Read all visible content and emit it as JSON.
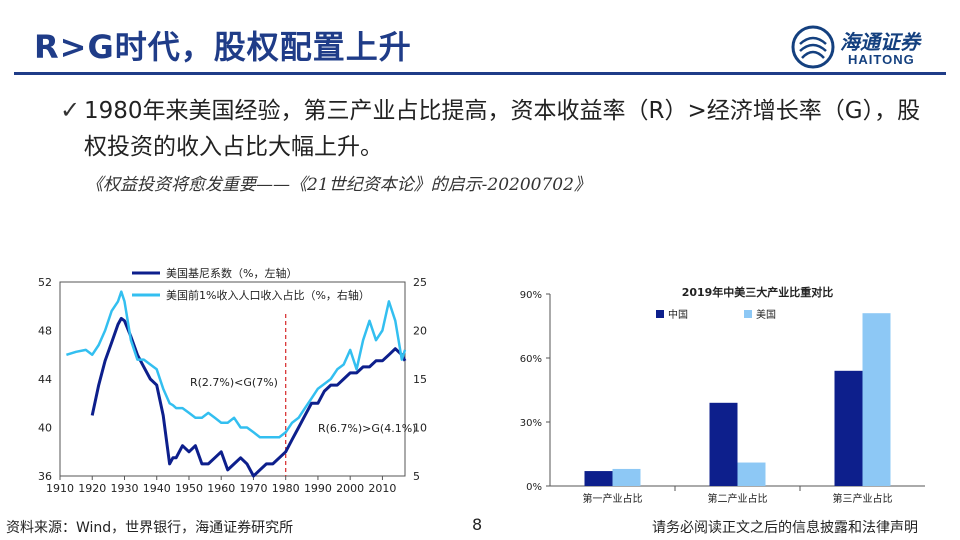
{
  "header": {
    "title": "R>G时代，股权配置上升",
    "logo_cn": "海通证券",
    "logo_en": "HAITONG"
  },
  "body": {
    "bullet": "1980年来美国经验，第三产业占比提高，资本收益率（R）>经济增长率（G），股权投资的收入占比大幅上升。",
    "source_link": "《权益投资将愈发重要——《21世纪资本论》的启示-20200702》"
  },
  "footer": {
    "source": "资料来源：Wind，世界银行，海通证券研究所",
    "page": "8",
    "disclaimer": "请务必阅读正文之后的信息披露和法律声明"
  },
  "colors": {
    "brand": "#1f3c88",
    "navy": "#0d1f8c",
    "cyan": "#33bff0",
    "light_blue": "#8dc8f5",
    "red_line": "#d62728"
  },
  "chart_data": [
    {
      "type": "line",
      "title": "",
      "x": [
        1912,
        1915,
        1918,
        1920,
        1922,
        1924,
        1926,
        1928,
        1929,
        1930,
        1932,
        1934,
        1936,
        1938,
        1940,
        1942,
        1944,
        1945,
        1946,
        1948,
        1950,
        1952,
        1954,
        1956,
        1958,
        1960,
        1962,
        1964,
        1966,
        1968,
        1970,
        1972,
        1974,
        1976,
        1978,
        1980,
        1982,
        1984,
        1986,
        1988,
        1990,
        1992,
        1994,
        1996,
        1998,
        2000,
        2002,
        2004,
        2006,
        2008,
        2010,
        2012,
        2014,
        2016,
        2017
      ],
      "series": [
        {
          "name": "美国基尼系数（%，左轴）",
          "axis": "left",
          "values": [
            null,
            null,
            null,
            41,
            43.5,
            45.5,
            47,
            48.5,
            49,
            48.8,
            47.5,
            46,
            45,
            44,
            43.5,
            41,
            37,
            37.5,
            37.5,
            38.5,
            38,
            38.5,
            37,
            37,
            37.5,
            38,
            36.5,
            37,
            37.5,
            37,
            36,
            36.5,
            37,
            37,
            37.5,
            38,
            39,
            40,
            41,
            42,
            42,
            43,
            43.5,
            43.5,
            44,
            44.5,
            44.5,
            45,
            45,
            45.5,
            45.5,
            46,
            46.5,
            46,
            45.5
          ]
        },
        {
          "name": "美国前1%收入人口收入占比（%，右轴）",
          "axis": "right",
          "values": [
            17.5,
            17.8,
            18,
            17.5,
            18.5,
            20,
            22,
            23,
            24,
            23,
            19,
            17,
            17,
            16.5,
            16,
            14,
            12.5,
            12.3,
            12,
            12,
            11.5,
            11,
            11,
            11.5,
            11,
            10.5,
            10.5,
            11,
            10,
            10,
            9.5,
            9,
            9,
            9,
            9,
            9.5,
            10.5,
            11,
            12,
            13,
            14,
            14.5,
            15,
            16,
            16.5,
            18,
            16,
            19,
            21,
            19,
            20,
            23,
            21,
            17,
            18
          ]
        }
      ],
      "x_ticks": [
        "1910",
        "1920",
        "1930",
        "1940",
        "1950",
        "1960",
        "1970",
        "1980",
        "1990",
        "2000",
        "2010"
      ],
      "xlim": [
        1910,
        2017
      ],
      "ylim_left": [
        36,
        52
      ],
      "y_ticks_left": [
        "52",
        "48",
        "44",
        "40",
        "36"
      ],
      "ylim_right": [
        5,
        25
      ],
      "y_ticks_right": [
        "25",
        "20",
        "15",
        "10",
        "5"
      ],
      "vline_x": 1980,
      "annotations": [
        "R(2.7%)<G(7%)",
        "R(6.7%)>G(4.1%)"
      ],
      "legend": "top-left"
    },
    {
      "type": "bar",
      "title": "2019年中美三大产业比重对比",
      "categories": [
        "第一产业占比",
        "第二产业占比",
        "第三产业占比"
      ],
      "series": [
        {
          "name": "中国",
          "values": [
            7,
            39,
            54
          ]
        },
        {
          "name": "美国",
          "values": [
            8,
            11,
            81
          ]
        }
      ],
      "ylim": [
        0,
        90
      ],
      "y_ticks": [
        "90%",
        "60%",
        "30%",
        "0%"
      ],
      "legend": "top-left"
    }
  ]
}
